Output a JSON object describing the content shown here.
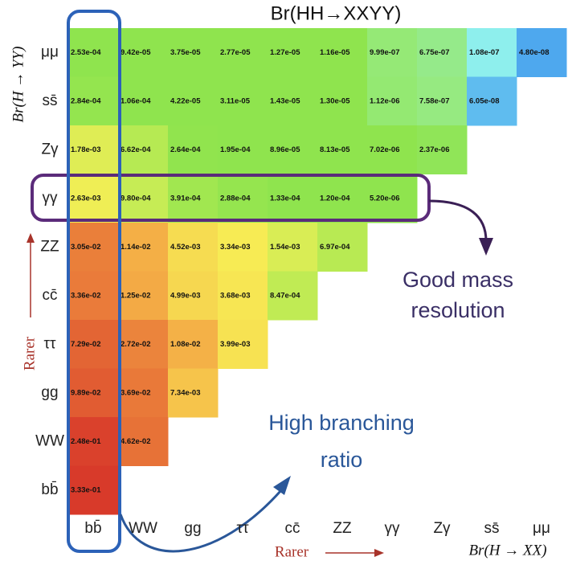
{
  "chart_data": {
    "type": "heatmap",
    "title": "Br(HH→XXYY)",
    "x_label": "Br(H → XX)",
    "y_label": "Br(H → YY)",
    "x_categories": [
      "bb̄",
      "WW",
      "gg",
      "ττ",
      "cc̄",
      "ZZ",
      "γγ",
      "Zγ",
      "ss̄",
      "μμ"
    ],
    "y_categories": [
      "μμ",
      "ss̄",
      "Zγ",
      "γγ",
      "ZZ",
      "cc̄",
      "ττ",
      "gg",
      "WW",
      "bb̄"
    ],
    "values": [
      [
        0.000253,
        9.42e-05,
        3.75e-05,
        2.77e-05,
        1.27e-05,
        1.16e-05,
        9.99e-07,
        6.75e-07,
        1.08e-07,
        4.8e-08
      ],
      [
        0.000284,
        0.000106,
        4.22e-05,
        3.11e-05,
        1.43e-05,
        1.3e-05,
        1.12e-06,
        7.58e-07,
        6.05e-08
      ],
      [
        0.00178,
        0.000662,
        0.000264,
        0.000195,
        8.96e-05,
        8.13e-05,
        7.02e-06,
        2.37e-06
      ],
      [
        0.00263,
        0.00098,
        0.000391,
        0.000288,
        0.000133,
        0.00012,
        5.2e-06
      ],
      [
        0.0305,
        0.0114,
        0.00452,
        0.00334,
        0.00154,
        0.000697
      ],
      [
        0.0336,
        0.0125,
        0.00499,
        0.00368,
        0.000847
      ],
      [
        0.0729,
        0.0272,
        0.0108,
        0.00399
      ],
      [
        0.0989,
        0.0369,
        0.00734
      ],
      [
        0.248,
        0.0462
      ],
      [
        0.333
      ]
    ],
    "value_labels": [
      [
        "2.53e-04",
        "9.42e-05",
        "3.75e-05",
        "2.77e-05",
        "1.27e-05",
        "1.16e-05",
        "9.99e-07",
        "6.75e-07",
        "1.08e-07",
        "4.80e-08"
      ],
      [
        "2.84e-04",
        "1.06e-04",
        "4.22e-05",
        "3.11e-05",
        "1.43e-05",
        "1.30e-05",
        "1.12e-06",
        "7.58e-07",
        "6.05e-08"
      ],
      [
        "1.78e-03",
        "6.62e-04",
        "2.64e-04",
        "1.95e-04",
        "8.96e-05",
        "8.13e-05",
        "7.02e-06",
        "2.37e-06"
      ],
      [
        "2.63e-03",
        "9.80e-04",
        "3.91e-04",
        "2.88e-04",
        "1.33e-04",
        "1.20e-04",
        "5.20e-06"
      ],
      [
        "3.05e-02",
        "1.14e-02",
        "4.52e-03",
        "3.34e-03",
        "1.54e-03",
        "6.97e-04"
      ],
      [
        "3.36e-02",
        "1.25e-02",
        "4.99e-03",
        "3.68e-03",
        "8.47e-04"
      ],
      [
        "7.29e-02",
        "2.72e-02",
        "1.08e-02",
        "3.99e-03"
      ],
      [
        "9.89e-02",
        "3.69e-02",
        "7.34e-03"
      ],
      [
        "2.48e-01",
        "4.62e-02"
      ],
      [
        "3.33e-01"
      ]
    ],
    "log_color_scale": true,
    "annotations": {
      "rarer_x": "Rarer",
      "rarer_y": "Rarer",
      "mass": [
        "Good mass",
        "resolution"
      ],
      "branching": [
        "High branching",
        "ratio"
      ]
    }
  }
}
